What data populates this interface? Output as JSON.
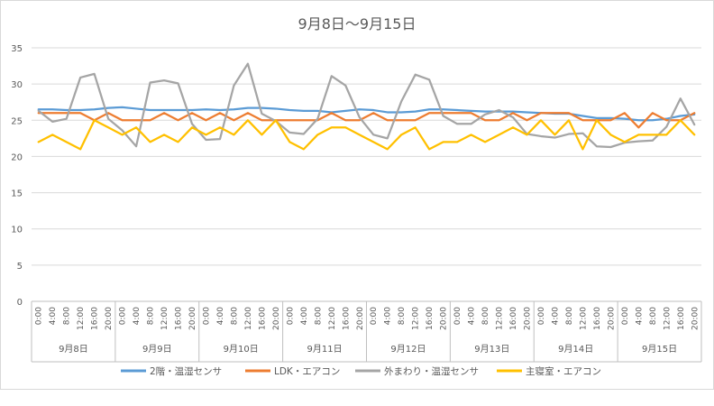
{
  "chart_data": {
    "type": "line",
    "title": "9月8日～9月15日",
    "xlabel": "",
    "ylabel": "",
    "ylim": [
      0,
      35
    ],
    "yticks": [
      0,
      5,
      10,
      15,
      20,
      25,
      30,
      35
    ],
    "grid": true,
    "legend_position": "bottom",
    "time_labels": [
      "0:00",
      "4:00",
      "8:00",
      "12:00",
      "16:00",
      "20:00"
    ],
    "days": [
      "9月8日",
      "9月9日",
      "9月10日",
      "9月11日",
      "9月12日",
      "9月13日",
      "9月14日",
      "9月15日"
    ],
    "x_count": 48,
    "series": [
      {
        "name": "2階・温湿センサ",
        "color": "#5b9bd5",
        "values": [
          26.5,
          26.5,
          26.4,
          26.4,
          26.5,
          26.7,
          26.8,
          26.6,
          26.4,
          26.4,
          26.4,
          26.4,
          26.5,
          26.4,
          26.5,
          26.7,
          26.7,
          26.6,
          26.4,
          26.3,
          26.3,
          26.1,
          26.3,
          26.5,
          26.4,
          26.1,
          26.1,
          26.2,
          26.5,
          26.5,
          26.4,
          26.3,
          26.2,
          26.2,
          26.2,
          26.1,
          26.0,
          25.9,
          25.9,
          25.6,
          25.3,
          25.3,
          25.2,
          25.0,
          25.0,
          25.2,
          25.6,
          25.8
        ]
      },
      {
        "name": "LDK・エアコン",
        "color": "#ed7d31",
        "values": [
          26,
          26,
          26,
          26,
          25,
          26,
          25,
          25,
          25,
          26,
          25,
          26,
          25,
          26,
          25,
          26,
          25,
          25,
          25,
          25,
          25,
          26,
          25,
          25,
          26,
          25,
          25,
          25,
          26,
          26,
          26,
          26,
          25,
          25,
          26,
          25,
          26,
          26,
          26,
          25,
          25,
          25,
          26,
          24,
          26,
          25,
          25,
          26
        ]
      },
      {
        "name": "外まわり・温湿センサ",
        "color": "#a5a5a5",
        "values": [
          26.3,
          24.8,
          25.2,
          30.9,
          31.4,
          25.2,
          23.6,
          21.4,
          30.2,
          30.5,
          30.1,
          24.5,
          22.3,
          22.4,
          29.8,
          32.8,
          25.9,
          24.9,
          23.3,
          23.1,
          25.2,
          31.1,
          29.8,
          25.4,
          23.0,
          22.5,
          27.6,
          31.3,
          30.6,
          25.6,
          24.5,
          24.5,
          25.8,
          26.4,
          25.4,
          23.1,
          22.8,
          22.6,
          23.1,
          23.2,
          21.4,
          21.3,
          21.9,
          22.1,
          22.2,
          24.1,
          28.0,
          24.4
        ]
      },
      {
        "name": "主寝室・エアコン",
        "color": "#ffc000",
        "values": [
          22,
          23,
          22,
          21,
          25,
          24,
          23,
          24,
          22,
          23,
          22,
          24,
          23,
          24,
          23,
          25,
          23,
          25,
          22,
          21,
          23,
          24,
          24,
          23,
          22,
          21,
          23,
          24,
          21,
          22,
          22,
          23,
          22,
          23,
          24,
          23,
          25,
          23,
          25,
          21,
          25,
          23,
          22,
          23,
          23,
          23,
          25,
          23
        ]
      }
    ]
  }
}
